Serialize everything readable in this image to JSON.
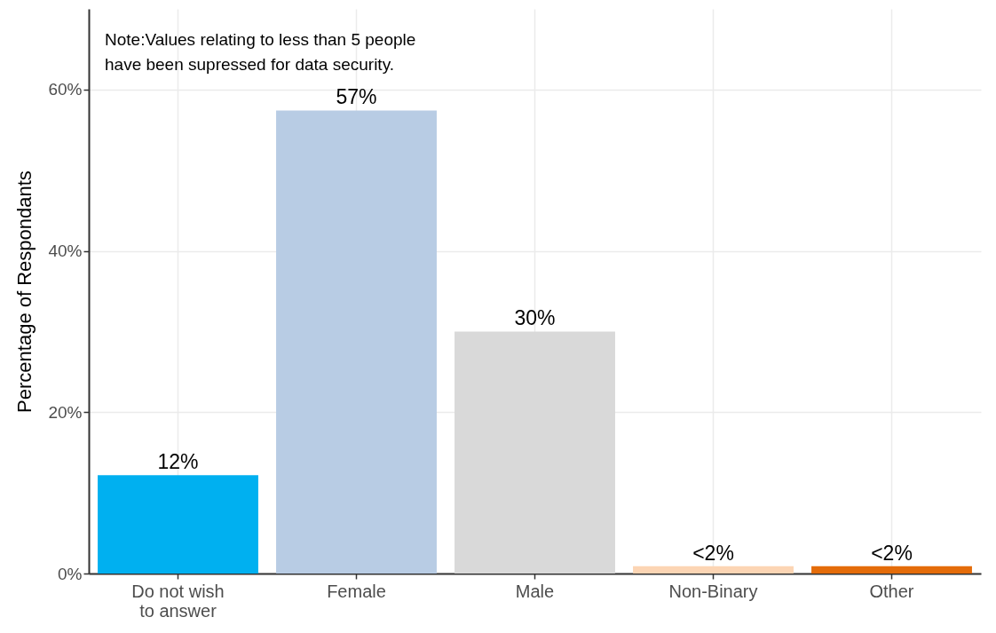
{
  "chart_data": {
    "type": "bar",
    "ylabel": "Percentage of Respondants",
    "categories": [
      "Do not wish\nto answer",
      "Female",
      "Male",
      "Non-Binary",
      "Other"
    ],
    "values": [
      12.2,
      57.4,
      30,
      0.9,
      0.9
    ],
    "colors": [
      "#00b0f0",
      "#b8cce4",
      "#d9d9d9",
      "#fcd5b4",
      "#e46c0a"
    ],
    "value_labels": [
      "12%",
      "57%",
      "30%",
      "<2%",
      "<2%"
    ],
    "ylim": [
      0,
      70
    ],
    "yticks": [
      {
        "value": 0,
        "label": "0%"
      },
      {
        "value": 20,
        "label": "20%"
      },
      {
        "value": 40,
        "label": "40%"
      },
      {
        "value": 60,
        "label": "60%"
      }
    ],
    "grid": true,
    "annotations": [
      "Note:Values relating to less than 5 people\nhave been supressed for data security."
    ]
  }
}
